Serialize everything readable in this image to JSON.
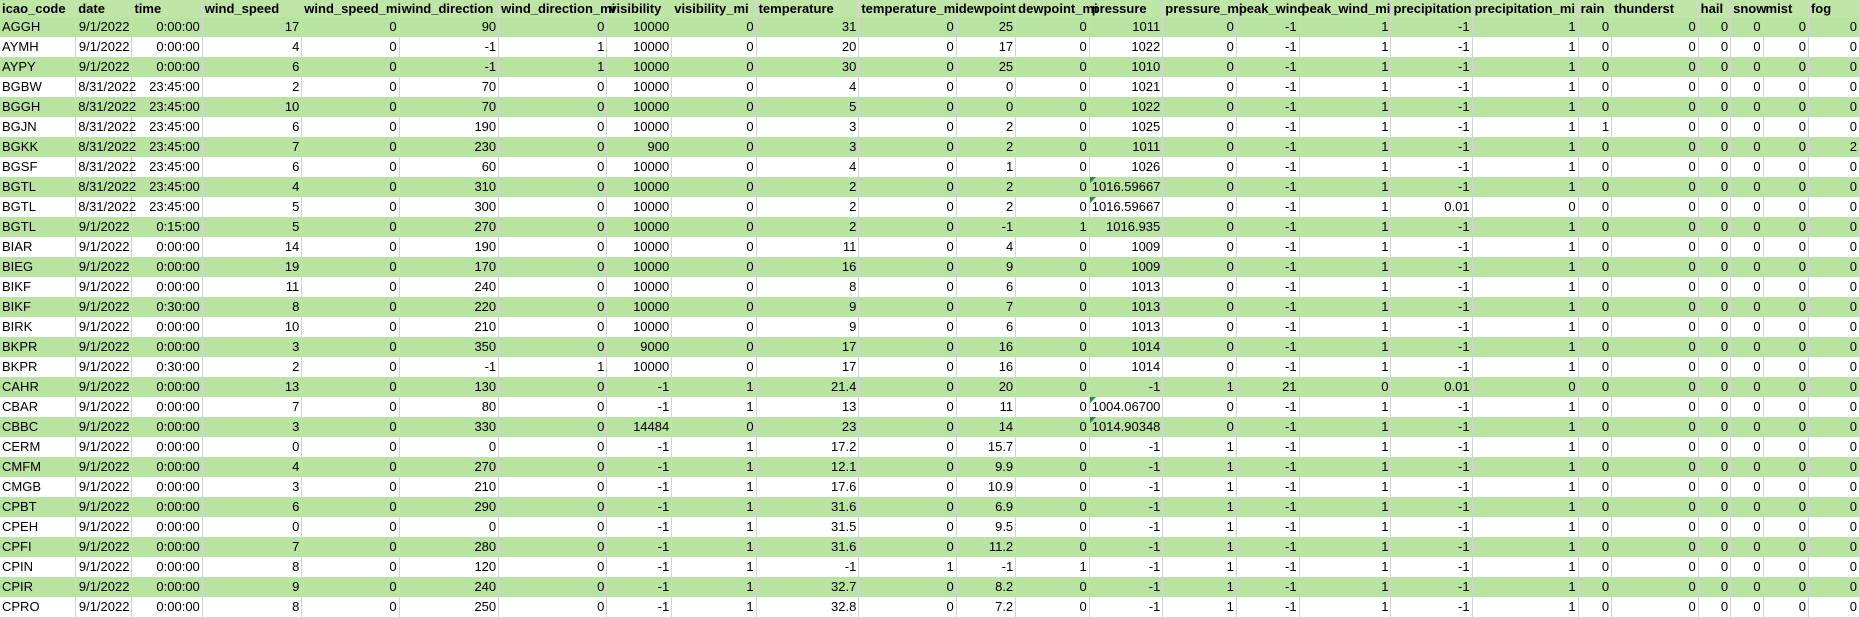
{
  "headers": [
    "icao_code",
    "date",
    "time",
    "wind_speed",
    "wind_speed_mi",
    "wind_direction",
    "wind_direction_mi",
    "visibility",
    "visibility_mi",
    "temperature",
    "temperature_mi",
    "dewpoint",
    "dewpoint_mi",
    "pressure",
    "pressure_mi",
    "peak_wind",
    "peak_wind_mi",
    "precipitation",
    "precipitation_mi",
    "rain",
    "thunderst",
    "hail",
    "snow",
    "mist",
    "fog"
  ],
  "rows": [
    [
      "AGGH",
      "9/1/2022",
      "0:00:00",
      "17",
      "0",
      "90",
      "0",
      "10000",
      "0",
      "31",
      "0",
      "25",
      "0",
      "1011",
      "0",
      "-1",
      "1",
      "-1",
      "1",
      "0",
      "0",
      "0",
      "0",
      "0",
      "0"
    ],
    [
      "AYMH",
      "9/1/2022",
      "0:00:00",
      "4",
      "0",
      "-1",
      "1",
      "10000",
      "0",
      "20",
      "0",
      "17",
      "0",
      "1022",
      "0",
      "-1",
      "1",
      "-1",
      "1",
      "0",
      "0",
      "0",
      "0",
      "0",
      "0"
    ],
    [
      "AYPY",
      "9/1/2022",
      "0:00:00",
      "6",
      "0",
      "-1",
      "1",
      "10000",
      "0",
      "30",
      "0",
      "25",
      "0",
      "1010",
      "0",
      "-1",
      "1",
      "-1",
      "1",
      "0",
      "0",
      "0",
      "0",
      "0",
      "0"
    ],
    [
      "BGBW",
      "8/31/2022",
      "23:45:00",
      "2",
      "0",
      "70",
      "0",
      "10000",
      "0",
      "4",
      "0",
      "0",
      "0",
      "1021",
      "0",
      "-1",
      "1",
      "-1",
      "1",
      "0",
      "0",
      "0",
      "0",
      "0",
      "0"
    ],
    [
      "BGGH",
      "8/31/2022",
      "23:45:00",
      "10",
      "0",
      "70",
      "0",
      "10000",
      "0",
      "5",
      "0",
      "0",
      "0",
      "1022",
      "0",
      "-1",
      "1",
      "-1",
      "1",
      "0",
      "0",
      "0",
      "0",
      "0",
      "0"
    ],
    [
      "BGJN",
      "8/31/2022",
      "23:45:00",
      "6",
      "0",
      "190",
      "0",
      "10000",
      "0",
      "3",
      "0",
      "2",
      "0",
      "1025",
      "0",
      "-1",
      "1",
      "-1",
      "1",
      "1",
      "0",
      "0",
      "0",
      "0",
      "0"
    ],
    [
      "BGKK",
      "8/31/2022",
      "23:45:00",
      "7",
      "0",
      "230",
      "0",
      "900",
      "0",
      "3",
      "0",
      "2",
      "0",
      "1011",
      "0",
      "-1",
      "1",
      "-1",
      "1",
      "0",
      "0",
      "0",
      "0",
      "0",
      "2"
    ],
    [
      "BGSF",
      "8/31/2022",
      "23:45:00",
      "6",
      "0",
      "60",
      "0",
      "10000",
      "0",
      "4",
      "0",
      "1",
      "0",
      "1026",
      "0",
      "-1",
      "1",
      "-1",
      "1",
      "0",
      "0",
      "0",
      "0",
      "0",
      "0"
    ],
    [
      "BGTL",
      "8/31/2022",
      "23:45:00",
      "4",
      "0",
      "310",
      "0",
      "10000",
      "0",
      "2",
      "0",
      "2",
      "0",
      "1016.59667",
      "0",
      "-1",
      "1",
      "-1",
      "1",
      "0",
      "0",
      "0",
      "0",
      "0",
      "0"
    ],
    [
      "BGTL",
      "8/31/2022",
      "23:45:00",
      "5",
      "0",
      "300",
      "0",
      "10000",
      "0",
      "2",
      "0",
      "2",
      "0",
      "1016.59667",
      "0",
      "-1",
      "1",
      "0.01",
      "0",
      "0",
      "0",
      "0",
      "0",
      "0",
      "0"
    ],
    [
      "BGTL",
      "9/1/2022",
      "0:15:00",
      "5",
      "0",
      "270",
      "0",
      "10000",
      "0",
      "2",
      "0",
      "-1",
      "1",
      "1016.935",
      "0",
      "-1",
      "1",
      "-1",
      "1",
      "0",
      "0",
      "0",
      "0",
      "0",
      "0"
    ],
    [
      "BIAR",
      "9/1/2022",
      "0:00:00",
      "14",
      "0",
      "190",
      "0",
      "10000",
      "0",
      "11",
      "0",
      "4",
      "0",
      "1009",
      "0",
      "-1",
      "1",
      "-1",
      "1",
      "0",
      "0",
      "0",
      "0",
      "0",
      "0"
    ],
    [
      "BIEG",
      "9/1/2022",
      "0:00:00",
      "19",
      "0",
      "170",
      "0",
      "10000",
      "0",
      "16",
      "0",
      "9",
      "0",
      "1009",
      "0",
      "-1",
      "1",
      "-1",
      "1",
      "0",
      "0",
      "0",
      "0",
      "0",
      "0"
    ],
    [
      "BIKF",
      "9/1/2022",
      "0:00:00",
      "11",
      "0",
      "240",
      "0",
      "10000",
      "0",
      "8",
      "0",
      "6",
      "0",
      "1013",
      "0",
      "-1",
      "1",
      "-1",
      "1",
      "0",
      "0",
      "0",
      "0",
      "0",
      "0"
    ],
    [
      "BIKF",
      "9/1/2022",
      "0:30:00",
      "8",
      "0",
      "220",
      "0",
      "10000",
      "0",
      "9",
      "0",
      "7",
      "0",
      "1013",
      "0",
      "-1",
      "1",
      "-1",
      "1",
      "0",
      "0",
      "0",
      "0",
      "0",
      "0"
    ],
    [
      "BIRK",
      "9/1/2022",
      "0:00:00",
      "10",
      "0",
      "210",
      "0",
      "10000",
      "0",
      "9",
      "0",
      "6",
      "0",
      "1013",
      "0",
      "-1",
      "1",
      "-1",
      "1",
      "0",
      "0",
      "0",
      "0",
      "0",
      "0"
    ],
    [
      "BKPR",
      "9/1/2022",
      "0:00:00",
      "3",
      "0",
      "350",
      "0",
      "9000",
      "0",
      "17",
      "0",
      "16",
      "0",
      "1014",
      "0",
      "-1",
      "1",
      "-1",
      "1",
      "0",
      "0",
      "0",
      "0",
      "0",
      "0"
    ],
    [
      "BKPR",
      "9/1/2022",
      "0:30:00",
      "2",
      "0",
      "-1",
      "1",
      "10000",
      "0",
      "17",
      "0",
      "16",
      "0",
      "1014",
      "0",
      "-1",
      "1",
      "-1",
      "1",
      "0",
      "0",
      "0",
      "0",
      "0",
      "0"
    ],
    [
      "CAHR",
      "9/1/2022",
      "0:00:00",
      "13",
      "0",
      "130",
      "0",
      "-1",
      "1",
      "21.4",
      "0",
      "20",
      "0",
      "-1",
      "1",
      "21",
      "0",
      "0.01",
      "0",
      "0",
      "0",
      "0",
      "0",
      "0",
      "0"
    ],
    [
      "CBAR",
      "9/1/2022",
      "0:00:00",
      "7",
      "0",
      "80",
      "0",
      "-1",
      "1",
      "13",
      "0",
      "11",
      "0",
      "1004.06700",
      "0",
      "-1",
      "1",
      "-1",
      "1",
      "0",
      "0",
      "0",
      "0",
      "0",
      "0"
    ],
    [
      "CBBC",
      "9/1/2022",
      "0:00:00",
      "3",
      "0",
      "330",
      "0",
      "14484",
      "0",
      "23",
      "0",
      "14",
      "0",
      "1014.90348",
      "0",
      "-1",
      "1",
      "-1",
      "1",
      "0",
      "0",
      "0",
      "0",
      "0",
      "0"
    ],
    [
      "CERM",
      "9/1/2022",
      "0:00:00",
      "0",
      "0",
      "0",
      "0",
      "-1",
      "1",
      "17.2",
      "0",
      "15.7",
      "0",
      "-1",
      "1",
      "-1",
      "1",
      "-1",
      "1",
      "0",
      "0",
      "0",
      "0",
      "0",
      "0"
    ],
    [
      "CMFM",
      "9/1/2022",
      "0:00:00",
      "4",
      "0",
      "270",
      "0",
      "-1",
      "1",
      "12.1",
      "0",
      "9.9",
      "0",
      "-1",
      "1",
      "-1",
      "1",
      "-1",
      "1",
      "0",
      "0",
      "0",
      "0",
      "0",
      "0"
    ],
    [
      "CMGB",
      "9/1/2022",
      "0:00:00",
      "3",
      "0",
      "210",
      "0",
      "-1",
      "1",
      "17.6",
      "0",
      "10.9",
      "0",
      "-1",
      "1",
      "-1",
      "1",
      "-1",
      "1",
      "0",
      "0",
      "0",
      "0",
      "0",
      "0"
    ],
    [
      "CPBT",
      "9/1/2022",
      "0:00:00",
      "6",
      "0",
      "290",
      "0",
      "-1",
      "1",
      "31.6",
      "0",
      "6.9",
      "0",
      "-1",
      "1",
      "-1",
      "1",
      "-1",
      "1",
      "0",
      "0",
      "0",
      "0",
      "0",
      "0"
    ],
    [
      "CPEH",
      "9/1/2022",
      "0:00:00",
      "0",
      "0",
      "0",
      "0",
      "-1",
      "1",
      "31.5",
      "0",
      "9.5",
      "0",
      "-1",
      "1",
      "-1",
      "1",
      "-1",
      "1",
      "0",
      "0",
      "0",
      "0",
      "0",
      "0"
    ],
    [
      "CPFI",
      "9/1/2022",
      "0:00:00",
      "7",
      "0",
      "280",
      "0",
      "-1",
      "1",
      "31.6",
      "0",
      "11.2",
      "0",
      "-1",
      "1",
      "-1",
      "1",
      "-1",
      "1",
      "0",
      "0",
      "0",
      "0",
      "0",
      "0"
    ],
    [
      "CPIN",
      "9/1/2022",
      "0:00:00",
      "8",
      "0",
      "120",
      "0",
      "-1",
      "1",
      "-1",
      "1",
      "-1",
      "1",
      "-1",
      "1",
      "-1",
      "1",
      "-1",
      "1",
      "0",
      "0",
      "0",
      "0",
      "0",
      "0"
    ],
    [
      "CPIR",
      "9/1/2022",
      "0:00:00",
      "9",
      "0",
      "240",
      "0",
      "-1",
      "1",
      "32.7",
      "0",
      "8.2",
      "0",
      "-1",
      "1",
      "-1",
      "1",
      "-1",
      "1",
      "0",
      "0",
      "0",
      "0",
      "0",
      "0"
    ],
    [
      "CPRO",
      "9/1/2022",
      "0:00:00",
      "8",
      "0",
      "250",
      "0",
      "-1",
      "1",
      "32.8",
      "0",
      "7.2",
      "0",
      "-1",
      "1",
      "-1",
      "1",
      "-1",
      "1",
      "0",
      "0",
      "0",
      "0",
      "0",
      "0"
    ]
  ],
  "colors": {
    "band_green": "#b9e3a0",
    "header_green": "#bfe5a7",
    "band_white": "#ffffff",
    "error_indicator": "#2e8b3a"
  }
}
